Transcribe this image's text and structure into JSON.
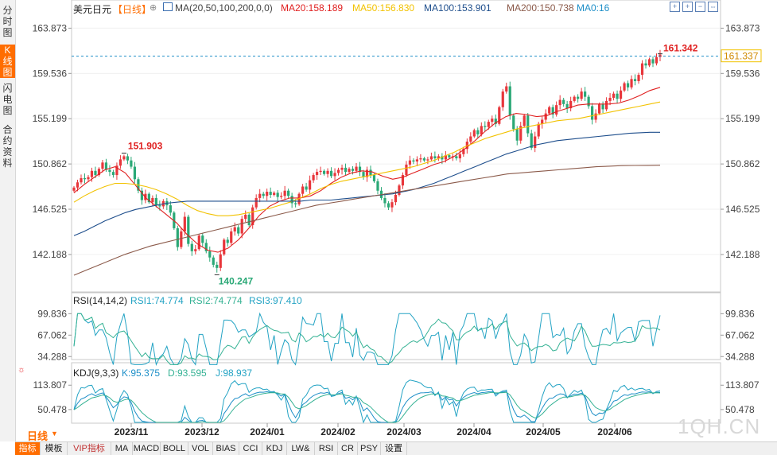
{
  "sidebar": {
    "tabs": [
      {
        "label": "分时图",
        "active": false
      },
      {
        "label": "K线图",
        "active": true
      },
      {
        "label": "闪电图",
        "active": false
      },
      {
        "label": "合约资料",
        "active": false
      }
    ]
  },
  "header": {
    "symbol": "美元日元",
    "period": "【日线】",
    "ma_params": "MA(20,50,100,200,0,0)",
    "ma20": "MA20:158.189",
    "ma50": "MA50:156.830",
    "ma100": "MA100:153.901",
    "ma200": "MA200:150.738",
    "ma0": "MA0:16"
  },
  "rsi_header": {
    "label": "RSI(14,14,2)",
    "rsi1": "RSI1:74.774",
    "rsi2": "RSI2:74.774",
    "rsi3": "RSI3:97.410"
  },
  "kdj_header": {
    "label": "KDJ(9,3,3)",
    "k": "K:95.375",
    "d": "D:93.595",
    "j": "J:98.937"
  },
  "colors": {
    "up": "#e8363b",
    "down": "#2aa876",
    "ma20": "#e02020",
    "ma50": "#f2c200",
    "ma100": "#1e4e8c",
    "ma200": "#8b5a4a",
    "accent": "#ff6d00",
    "rsi1": "#23a3c4",
    "rsi2": "#35b294",
    "kdj_k": "#1e8fc8",
    "kdj_d": "#35b294",
    "kdj_j": "#23a3c4"
  },
  "bottom": {
    "period_button": "日线",
    "tabs": [
      "指标",
      "模板",
      "VIP指标",
      "MA",
      "MACD",
      "BOLL",
      "VOL",
      "BIAS",
      "CCI",
      "KDJ",
      "LW&",
      "RSI",
      "CR",
      "PSY",
      "设置"
    ]
  },
  "watermark": "1QH.CN",
  "chart_data": {
    "type": "candlestick",
    "price_ticks": [
      "163.873",
      "159.536",
      "155.199",
      "150.862",
      "146.525",
      "142.188"
    ],
    "price_ylim": [
      138.6,
      165.2
    ],
    "rsi_ticks": [
      "99.836",
      "67.062",
      "34.288"
    ],
    "kdj_ticks": [
      "113.807",
      "50.478"
    ],
    "x_labels": [
      "2023/11",
      "2023/12",
      "2024/01",
      "2024/02",
      "2024/03",
      "2024/04",
      "2024/05",
      "2024/06"
    ],
    "last_price": "161.337",
    "annotations": [
      {
        "text": "161.342",
        "kind": "high"
      },
      {
        "text": "151.903",
        "kind": "high"
      },
      {
        "text": "140.247",
        "kind": "low"
      }
    ],
    "close_path": [
      148.6,
      149.1,
      149.5,
      149.4,
      149.6,
      150.2,
      149.8,
      150.4,
      151.0,
      150.3,
      150.1,
      149.8,
      150.7,
      151.3,
      151.6,
      151.2,
      150.6,
      149.4,
      148.3,
      147.4,
      148.0,
      147.2,
      147.6,
      146.9,
      146.8,
      147.3,
      146.9,
      146.2,
      144.7,
      142.9,
      144.4,
      145.8,
      143.2,
      142.5,
      142.7,
      144.0,
      143.3,
      142.5,
      141.9,
      141.2,
      140.9,
      142.2,
      143.6,
      143.3,
      144.4,
      144.8,
      144.2,
      145.6,
      146.0,
      145.0,
      146.7,
      147.6,
      148.0,
      147.8,
      148.2,
      147.9,
      148.1,
      147.7,
      147.8,
      148.3,
      147.8,
      147.1,
      147.0,
      148.0,
      148.7,
      148.4,
      149.3,
      149.8,
      150.1,
      150.2,
      149.9,
      150.2,
      149.7,
      150.0,
      150.3,
      150.5,
      150.1,
      150.4,
      150.2,
      150.6,
      150.1,
      149.6,
      150.3,
      149.8,
      149.2,
      148.3,
      147.6,
      147.1,
      146.7,
      147.2,
      147.9,
      148.8,
      149.8,
      150.8,
      151.2,
      151.1,
      151.3,
      151.4,
      151.2,
      151.3,
      151.6,
      151.4,
      151.6,
      151.3,
      151.7,
      151.5,
      151.6,
      151.4,
      151.8,
      152.3,
      153.0,
      153.5,
      154.1,
      153.7,
      154.5,
      154.4,
      154.9,
      155.2,
      154.7,
      156.3,
      157.8,
      158.3,
      155.5,
      154.2,
      153.1,
      154.5,
      155.5,
      153.8,
      152.4,
      153.5,
      154.7,
      155.1,
      155.7,
      156.3,
      155.6,
      156.5,
      157.0,
      156.6,
      156.2,
      156.9,
      157.3,
      157.1,
      157.8,
      157.3,
      156.4,
      155.1,
      155.7,
      156.6,
      156.1,
      156.9,
      157.2,
      157.6,
      157.1,
      157.9,
      158.6,
      158.2,
      159.0,
      158.8,
      159.4,
      160.5,
      160.3,
      160.9,
      160.5,
      161.1,
      161.34
    ],
    "series": [
      {
        "name": "MA20",
        "y": [
          148.1,
          148.9,
          149.6,
          150.3,
          150.6,
          150.0,
          148.8,
          147.6,
          146.8,
          146.0,
          145.2,
          144.1,
          143.2,
          142.6,
          142.4,
          142.8,
          143.6,
          144.7,
          145.9,
          146.8,
          147.3,
          147.6,
          147.6,
          147.8,
          148.3,
          149.0,
          149.6,
          150.0,
          150.2,
          150.1,
          149.7,
          149.4,
          149.6,
          150.0,
          150.4,
          150.8,
          151.1,
          151.6,
          152.3,
          153.1,
          154.0,
          154.8,
          155.4,
          155.7,
          155.6,
          155.4,
          155.5,
          155.9,
          156.2,
          156.5,
          156.6,
          156.6,
          156.6,
          156.7,
          157.0,
          157.4,
          157.9,
          158.2
        ]
      },
      {
        "name": "MA50",
        "y": [
          147.2,
          147.8,
          148.3,
          148.7,
          149.0,
          149.0,
          148.9,
          148.7,
          148.4,
          148.0,
          147.5,
          146.9,
          146.4,
          146.1,
          145.9,
          145.9,
          146.0,
          146.2,
          146.4,
          146.6,
          146.9,
          147.2,
          147.6,
          148.0,
          148.5,
          148.9,
          149.2,
          149.4,
          149.6,
          149.8,
          150.0,
          150.2,
          150.4,
          150.6,
          150.9,
          151.2,
          151.6,
          152.0,
          152.5,
          152.9,
          153.3,
          153.6,
          153.9,
          154.2,
          154.4,
          154.6,
          154.8,
          155.0,
          155.1,
          155.2,
          155.4,
          155.6,
          155.8,
          156.0,
          156.2,
          156.4,
          156.6,
          156.8
        ]
      },
      {
        "name": "MA100",
        "y": [
          144.0,
          144.4,
          144.9,
          145.4,
          145.8,
          146.2,
          146.5,
          146.7,
          146.9,
          147.1,
          147.2,
          147.3,
          147.3,
          147.3,
          147.3,
          147.3,
          147.3,
          147.3,
          147.3,
          147.3,
          147.3,
          147.3,
          147.3,
          147.4,
          147.4,
          147.4,
          147.5,
          147.6,
          147.7,
          147.8,
          147.9,
          148.0,
          148.2,
          148.4,
          148.7,
          149.0,
          149.4,
          149.8,
          150.2,
          150.6,
          151.0,
          151.4,
          151.8,
          152.1,
          152.4,
          152.7,
          152.9,
          153.1,
          153.2,
          153.3,
          153.4,
          153.5,
          153.6,
          153.7,
          153.8,
          153.85,
          153.9,
          153.9
        ]
      },
      {
        "name": "MA200",
        "y": [
          140.2,
          140.7,
          141.2,
          141.7,
          142.2,
          142.6,
          143.0,
          143.3,
          143.6,
          143.9,
          144.2,
          144.5,
          144.8,
          145.1,
          145.4,
          145.7,
          146.0,
          146.3,
          146.6,
          146.9,
          147.1,
          147.3,
          147.5,
          147.7,
          147.9,
          148.1,
          148.3,
          148.5,
          148.7,
          148.9,
          149.1,
          149.3,
          149.5,
          149.7,
          149.9,
          150.0,
          150.1,
          150.2,
          150.3,
          150.4,
          150.5,
          150.6,
          150.65,
          150.7,
          150.72,
          150.73,
          150.738
        ]
      }
    ],
    "rsi": {
      "rsi1_last": 74.774,
      "rsi2_last": 74.774,
      "rsi3_last": 97.41,
      "ylim": [
        20,
        110
      ]
    },
    "kdj": {
      "k_last": 95.375,
      "d_last": 93.595,
      "j_last": 98.937,
      "ylim": [
        15,
        135
      ]
    }
  }
}
